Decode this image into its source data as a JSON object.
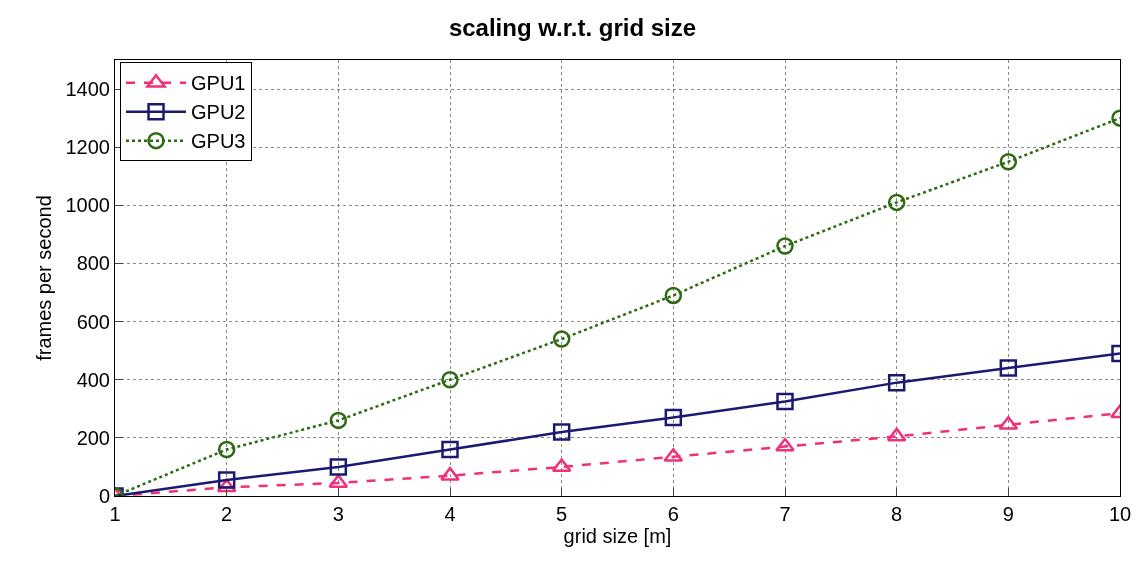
{
  "chart_data": {
    "type": "line",
    "title": "scaling w.r.t. grid size",
    "xlabel": "grid size [m]",
    "ylabel": "frames per second",
    "x": [
      1,
      2,
      3,
      4,
      5,
      6,
      7,
      8,
      9,
      10
    ],
    "series": [
      {
        "name": "GPU1",
        "color": "#f0307a",
        "marker": "triangle",
        "line_style": "dashed",
        "values": [
          0,
          30,
          45,
          70,
          100,
          135,
          170,
          205,
          245,
          285
        ]
      },
      {
        "name": "GPU2",
        "color": "#1c1a70",
        "marker": "square",
        "line_style": "solid",
        "values": [
          0,
          55,
          100,
          160,
          220,
          270,
          325,
          390,
          440,
          490
        ]
      },
      {
        "name": "GPU3",
        "color": "#2e6a12",
        "marker": "circle",
        "line_style": "dotted",
        "values": [
          0,
          160,
          260,
          400,
          540,
          690,
          860,
          1010,
          1150,
          1300
        ]
      }
    ],
    "xlim": [
      1,
      10
    ],
    "xticks": [
      1,
      2,
      3,
      4,
      5,
      6,
      7,
      8,
      9,
      10
    ],
    "ylim": [
      0,
      1500
    ],
    "yticks": [
      0,
      200,
      400,
      600,
      800,
      1000,
      1200,
      1400
    ],
    "grid": true,
    "legend": "top left"
  }
}
